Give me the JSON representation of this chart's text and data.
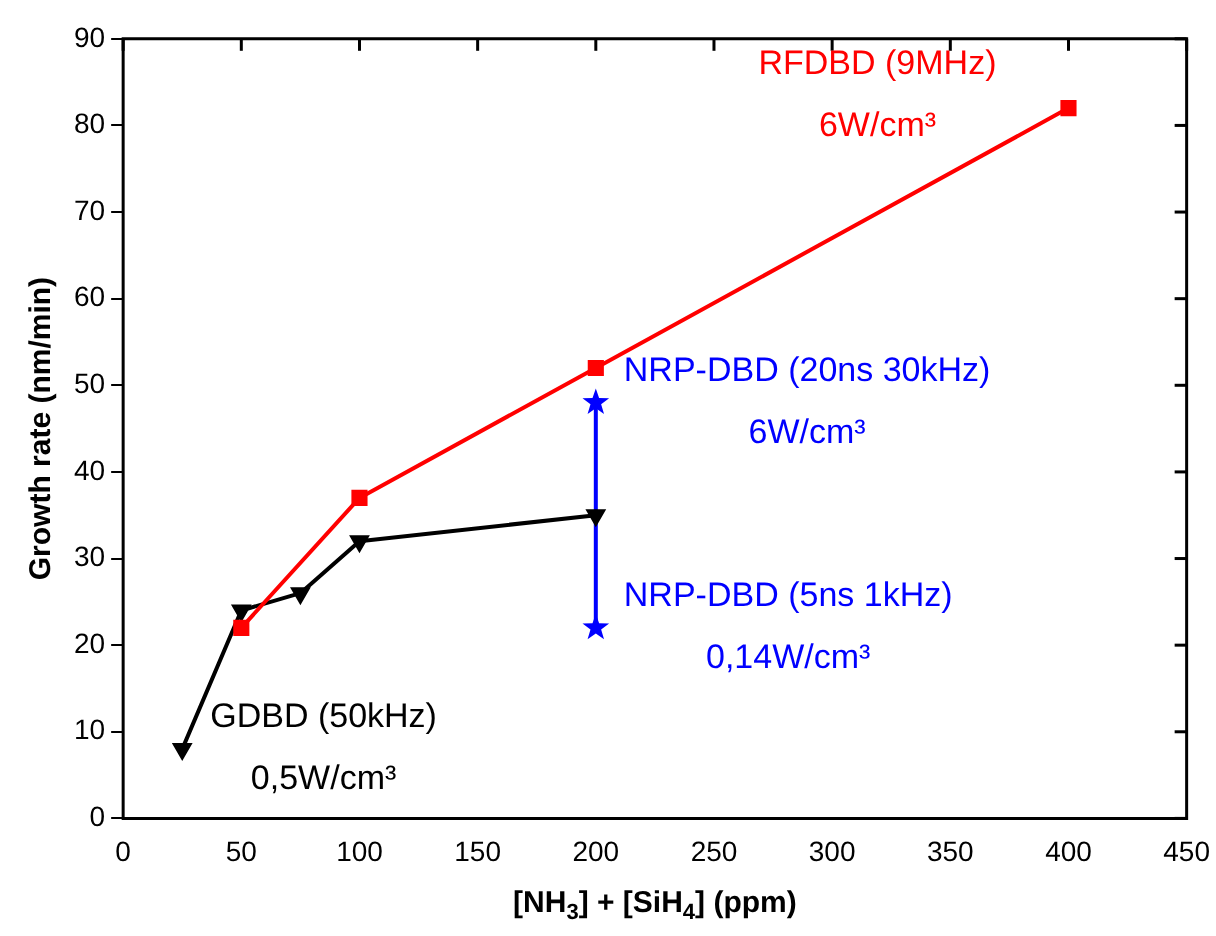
{
  "chart_data": {
    "type": "line",
    "xlabel": "[NH$_{3}$] + [SiH$_{4}$] (ppm)",
    "ylabel": "Growth rate (nm/min)",
    "xlim": [
      0,
      450
    ],
    "xticks": [
      0,
      50,
      100,
      150,
      200,
      250,
      300,
      350,
      400,
      450
    ],
    "ylim": [
      0,
      90
    ],
    "yticks": [
      0,
      10,
      20,
      30,
      40,
      50,
      60,
      70,
      80,
      90
    ],
    "grid": false,
    "legend": false,
    "series": [
      {
        "color": "#ff0000",
        "marker": "square",
        "x": [
          50,
          100,
          200,
          400
        ],
        "values": [
          22,
          37,
          52,
          82
        ]
      },
      {
        "color": "#000000",
        "marker": "triangle",
        "x": [
          25,
          50,
          75,
          100,
          200
        ],
        "values": [
          8,
          24,
          26,
          32,
          35
        ]
      },
      {
        "color": "#0000ff",
        "marker": "star",
        "x": [
          200,
          200
        ],
        "values": [
          48,
          22
        ]
      }
    ],
    "annotations": [
      {
        "text": "RFDBD (9MHz)\n6W/cm³",
        "x": 400,
        "y": 82
      },
      {
        "text": "NRP-DBD (20ns 30kHz)\n6W/cm³",
        "x": 200,
        "y": 48
      },
      {
        "text": "NRP-DBD (5ns 1kHz)\n0,14W/cm³",
        "x": 200,
        "y": 22
      },
      {
        "text": "GDBD (50kHz)\n0,5W/cm³",
        "x": 25,
        "y": 8
      }
    ]
  }
}
